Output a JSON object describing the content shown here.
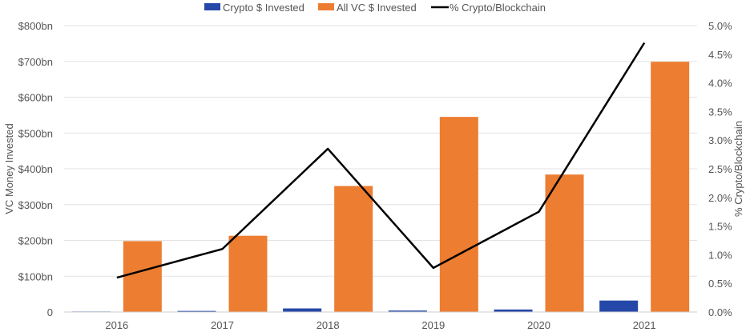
{
  "chart_data": {
    "type": "bar",
    "categories": [
      "2016",
      "2017",
      "2018",
      "2019",
      "2020",
      "2021"
    ],
    "series": [
      {
        "name": "Crypto $ Invested",
        "kind": "bar",
        "axis": "left",
        "color": "#2548a8",
        "values": [
          1.5,
          3,
          10,
          4,
          7,
          32
        ]
      },
      {
        "name": "All VC $ Invested",
        "kind": "bar",
        "axis": "left",
        "color": "#ed7d31",
        "values": [
          198,
          213,
          352,
          545,
          384,
          699
        ]
      },
      {
        "name": "% Crypto/Blockchain",
        "kind": "line",
        "axis": "right",
        "color": "#000000",
        "values": [
          0.6,
          1.1,
          2.85,
          0.77,
          1.75,
          4.7
        ]
      }
    ],
    "title": "",
    "ylabel": "VC Money Invested",
    "y2label": "% Crypto/Blockchain",
    "ylim": [
      0,
      800
    ],
    "y2lim": [
      0,
      5
    ],
    "yticks": [
      "0",
      "$100bn",
      "$200bn",
      "$300bn",
      "$400bn",
      "$500bn",
      "$600bn",
      "$700bn",
      "$800bn"
    ],
    "y2ticks": [
      "0.0%",
      "0.5%",
      "1.0%",
      "1.5%",
      "2.0%",
      "2.5%",
      "3.0%",
      "3.5%",
      "4.0%",
      "4.5%",
      "5.0%"
    ],
    "grid": true,
    "legend_position": "top-center"
  }
}
